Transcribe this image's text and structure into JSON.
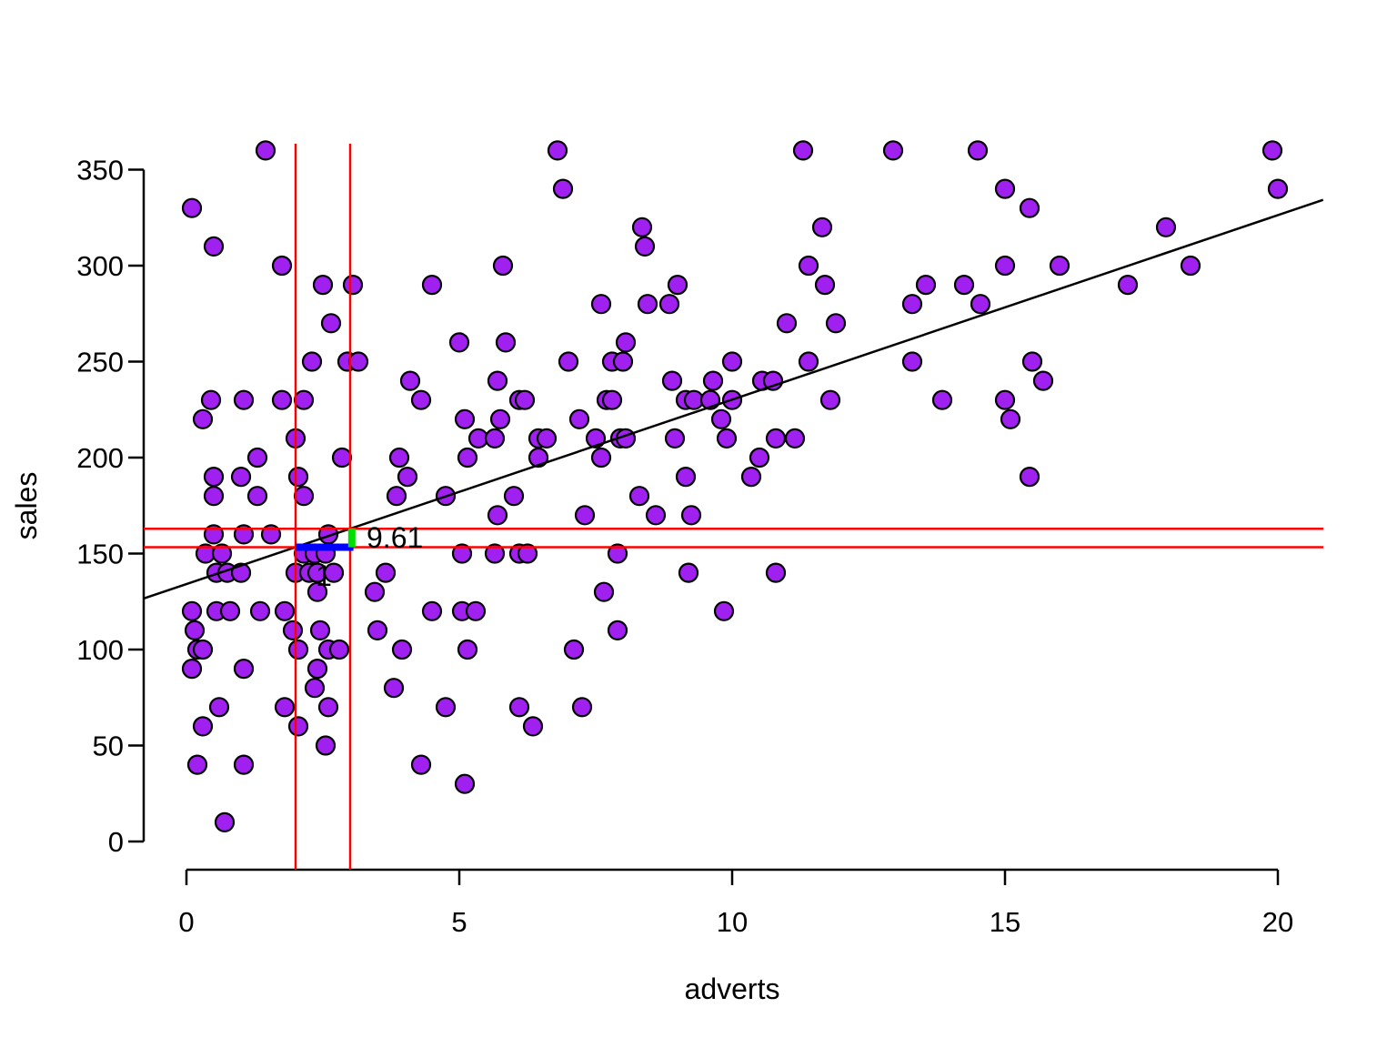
{
  "chart_data": {
    "type": "scatter",
    "title": "",
    "xlabel": "adverts",
    "ylabel": "sales",
    "x_ticks": [
      0,
      5,
      10,
      15,
      20
    ],
    "y_ticks": [
      0,
      50,
      100,
      150,
      200,
      250,
      300,
      350
    ],
    "xlim": [
      -0.78,
      20.83
    ],
    "ylim": [
      -14,
      374
    ],
    "grid": false,
    "legend": "none",
    "point_style": {
      "fill": "#A020F0",
      "stroke": "#000000",
      "radius": 10
    },
    "points": [
      [
        1.45,
        360
      ],
      [
        6.8,
        360
      ],
      [
        11.3,
        360
      ],
      [
        12.95,
        360
      ],
      [
        14.5,
        360
      ],
      [
        19.9,
        360
      ],
      [
        6.9,
        340
      ],
      [
        15.0,
        340
      ],
      [
        20.0,
        340
      ],
      [
        0.1,
        330
      ],
      [
        15.45,
        330
      ],
      [
        8.35,
        320
      ],
      [
        11.65,
        320
      ],
      [
        17.95,
        320
      ],
      [
        0.5,
        310
      ],
      [
        8.4,
        310
      ],
      [
        1.75,
        300
      ],
      [
        5.8,
        300
      ],
      [
        11.4,
        300
      ],
      [
        15.0,
        300
      ],
      [
        16.0,
        300
      ],
      [
        18.4,
        300
      ],
      [
        2.5,
        290
      ],
      [
        3.05,
        290
      ],
      [
        4.5,
        290
      ],
      [
        9.0,
        290
      ],
      [
        11.7,
        290
      ],
      [
        13.55,
        290
      ],
      [
        14.25,
        290
      ],
      [
        17.25,
        290
      ],
      [
        7.6,
        280
      ],
      [
        8.45,
        280
      ],
      [
        8.85,
        280
      ],
      [
        13.3,
        280
      ],
      [
        14.55,
        280
      ],
      [
        2.65,
        270
      ],
      [
        11.0,
        270
      ],
      [
        11.9,
        270
      ],
      [
        5.0,
        260
      ],
      [
        5.85,
        260
      ],
      [
        8.05,
        260
      ],
      [
        2.3,
        250
      ],
      [
        2.95,
        250
      ],
      [
        3.15,
        250
      ],
      [
        7.0,
        250
      ],
      [
        7.8,
        250
      ],
      [
        8.0,
        250
      ],
      [
        10.0,
        250
      ],
      [
        11.4,
        250
      ],
      [
        13.3,
        250
      ],
      [
        15.5,
        250
      ],
      [
        4.1,
        240
      ],
      [
        5.7,
        240
      ],
      [
        8.9,
        240
      ],
      [
        9.65,
        240
      ],
      [
        10.55,
        240
      ],
      [
        10.75,
        240
      ],
      [
        15.7,
        240
      ],
      [
        0.45,
        230
      ],
      [
        1.05,
        230
      ],
      [
        1.75,
        230
      ],
      [
        2.15,
        230
      ],
      [
        4.3,
        230
      ],
      [
        6.1,
        230
      ],
      [
        6.2,
        230
      ],
      [
        7.7,
        230
      ],
      [
        7.8,
        230
      ],
      [
        9.15,
        230
      ],
      [
        9.3,
        230
      ],
      [
        9.6,
        230
      ],
      [
        10.0,
        230
      ],
      [
        11.8,
        230
      ],
      [
        13.85,
        230
      ],
      [
        15.0,
        230
      ],
      [
        0.3,
        220
      ],
      [
        5.1,
        220
      ],
      [
        5.75,
        220
      ],
      [
        7.2,
        220
      ],
      [
        9.8,
        220
      ],
      [
        15.1,
        220
      ],
      [
        2.0,
        210
      ],
      [
        5.35,
        210
      ],
      [
        5.65,
        210
      ],
      [
        6.45,
        210
      ],
      [
        6.6,
        210
      ],
      [
        7.5,
        210
      ],
      [
        7.95,
        210
      ],
      [
        8.05,
        210
      ],
      [
        8.95,
        210
      ],
      [
        9.9,
        210
      ],
      [
        10.8,
        210
      ],
      [
        11.15,
        210
      ],
      [
        1.3,
        200
      ],
      [
        2.85,
        200
      ],
      [
        3.9,
        200
      ],
      [
        5.15,
        200
      ],
      [
        6.45,
        200
      ],
      [
        7.6,
        200
      ],
      [
        10.5,
        200
      ],
      [
        0.5,
        190
      ],
      [
        1.0,
        190
      ],
      [
        2.05,
        190
      ],
      [
        4.05,
        190
      ],
      [
        9.15,
        190
      ],
      [
        10.35,
        190
      ],
      [
        15.45,
        190
      ],
      [
        0.5,
        180
      ],
      [
        1.3,
        180
      ],
      [
        2.15,
        180
      ],
      [
        3.85,
        180
      ],
      [
        4.75,
        180
      ],
      [
        6.0,
        180
      ],
      [
        8.3,
        180
      ],
      [
        5.7,
        170
      ],
      [
        7.3,
        170
      ],
      [
        8.6,
        170
      ],
      [
        9.25,
        170
      ],
      [
        0.5,
        160
      ],
      [
        1.05,
        160
      ],
      [
        1.55,
        160
      ],
      [
        2.6,
        160
      ],
      [
        0.35,
        150
      ],
      [
        0.65,
        150
      ],
      [
        2.15,
        150
      ],
      [
        2.35,
        150
      ],
      [
        2.55,
        150
      ],
      [
        5.05,
        150
      ],
      [
        5.65,
        150
      ],
      [
        6.1,
        150
      ],
      [
        6.25,
        150
      ],
      [
        7.9,
        150
      ],
      [
        0.55,
        140
      ],
      [
        0.75,
        140
      ],
      [
        1.0,
        140
      ],
      [
        2.0,
        140
      ],
      [
        2.25,
        140
      ],
      [
        2.4,
        140
      ],
      [
        2.7,
        140
      ],
      [
        3.65,
        140
      ],
      [
        9.2,
        140
      ],
      [
        10.8,
        140
      ],
      [
        2.4,
        130
      ],
      [
        3.45,
        130
      ],
      [
        7.65,
        130
      ],
      [
        0.1,
        120
      ],
      [
        0.55,
        120
      ],
      [
        0.8,
        120
      ],
      [
        1.35,
        120
      ],
      [
        1.8,
        120
      ],
      [
        4.5,
        120
      ],
      [
        5.05,
        120
      ],
      [
        5.3,
        120
      ],
      [
        9.85,
        120
      ],
      [
        0.15,
        110
      ],
      [
        1.95,
        110
      ],
      [
        2.45,
        110
      ],
      [
        3.5,
        110
      ],
      [
        7.9,
        110
      ],
      [
        0.2,
        100
      ],
      [
        0.3,
        100
      ],
      [
        2.05,
        100
      ],
      [
        2.6,
        100
      ],
      [
        2.8,
        100
      ],
      [
        3.95,
        100
      ],
      [
        5.15,
        100
      ],
      [
        7.1,
        100
      ],
      [
        0.1,
        90
      ],
      [
        1.05,
        90
      ],
      [
        2.4,
        90
      ],
      [
        2.35,
        80
      ],
      [
        3.8,
        80
      ],
      [
        0.6,
        70
      ],
      [
        1.8,
        70
      ],
      [
        2.6,
        70
      ],
      [
        4.75,
        70
      ],
      [
        6.1,
        70
      ],
      [
        7.25,
        70
      ],
      [
        0.3,
        60
      ],
      [
        2.05,
        60
      ],
      [
        6.35,
        60
      ],
      [
        2.55,
        50
      ],
      [
        0.2,
        40
      ],
      [
        1.05,
        40
      ],
      [
        4.3,
        40
      ],
      [
        5.1,
        30
      ],
      [
        0.7,
        10
      ]
    ],
    "regression_line": {
      "slope": 9.61,
      "intercept": 134.1,
      "color": "#000000"
    },
    "annotations": {
      "vlines": {
        "x": [
          2,
          3
        ],
        "color": "#FF0000"
      },
      "hlines": {
        "y": [
          153.3,
          162.9
        ],
        "color": "#FF0000"
      },
      "run_segment": {
        "x1": 2.0,
        "x2": 3.06,
        "y": 153.3,
        "color": "#0000FF",
        "label": "1"
      },
      "rise_segment": {
        "x": 3.03,
        "y1": 153.3,
        "y2": 163.1,
        "color": "#00DD00",
        "label": "9.61"
      }
    }
  }
}
